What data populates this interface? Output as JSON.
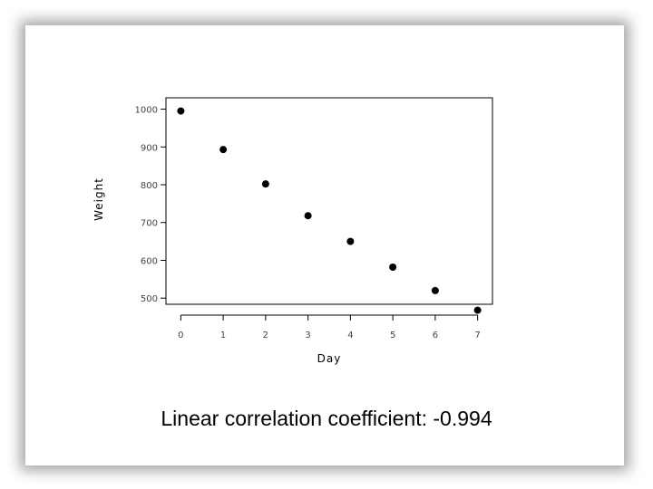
{
  "caption": "Linear correlation coefficient: -0.994",
  "colors": {
    "point": "#000000",
    "axis": "#000000",
    "tick_text": "#444444"
  },
  "chart_data": {
    "type": "scatter",
    "title": "",
    "xlabel": "Day",
    "ylabel": "Weight",
    "x": [
      0,
      1,
      2,
      3,
      4,
      5,
      6,
      7
    ],
    "y": [
      995,
      893,
      802,
      718,
      650,
      582,
      520,
      468
    ],
    "xlim": [
      -0.35,
      7.35
    ],
    "ylim": [
      455,
      1030
    ],
    "xticks": [
      0,
      1,
      2,
      3,
      4,
      5,
      6,
      7
    ],
    "xtick_labels": [
      "0",
      "1",
      "2",
      "3",
      "4",
      "5",
      "6",
      "7"
    ],
    "yticks": [
      1000,
      900,
      800,
      700,
      600,
      500
    ],
    "ytick_labels": [
      "1000",
      "900",
      "800",
      "700",
      "600",
      "500"
    ],
    "grid": false,
    "legend": "none"
  }
}
